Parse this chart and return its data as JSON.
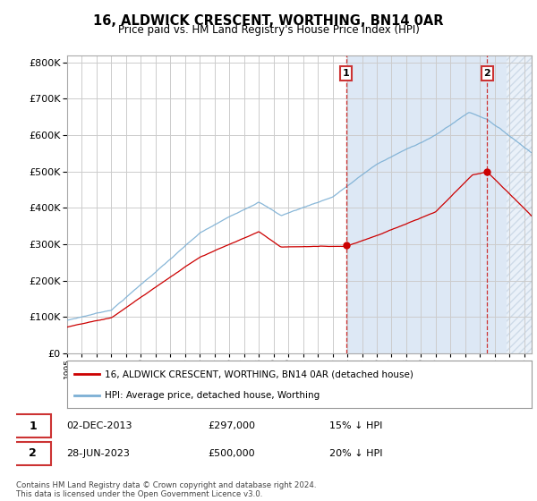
{
  "title": "16, ALDWICK CRESCENT, WORTHING, BN14 0AR",
  "subtitle": "Price paid vs. HM Land Registry's House Price Index (HPI)",
  "ytick_values": [
    0,
    100000,
    200000,
    300000,
    400000,
    500000,
    600000,
    700000,
    800000
  ],
  "ylim": [
    0,
    820000
  ],
  "xlim_start": 1995.0,
  "xlim_end": 2026.5,
  "transaction1": {
    "date": 2013.92,
    "price": 297000,
    "label": "1",
    "text": "02-DEC-2013",
    "amount": "£297,000",
    "hpi": "15% ↓ HPI"
  },
  "transaction2": {
    "date": 2023.49,
    "price": 500000,
    "label": "2",
    "text": "28-JUN-2023",
    "amount": "£500,000",
    "hpi": "20% ↓ HPI"
  },
  "legend_line1": "16, ALDWICK CRESCENT, WORTHING, BN14 0AR (detached house)",
  "legend_line2": "HPI: Average price, detached house, Worthing",
  "footnote": "Contains HM Land Registry data © Crown copyright and database right 2024.\nThis data is licensed under the Open Government Licence v3.0.",
  "line_color_red": "#cc0000",
  "line_color_blue": "#7bafd4",
  "grid_color": "#cccccc",
  "background_color": "#ffffff",
  "shaded_color": "#dde8f5",
  "hatch_color": "#bbccdd"
}
